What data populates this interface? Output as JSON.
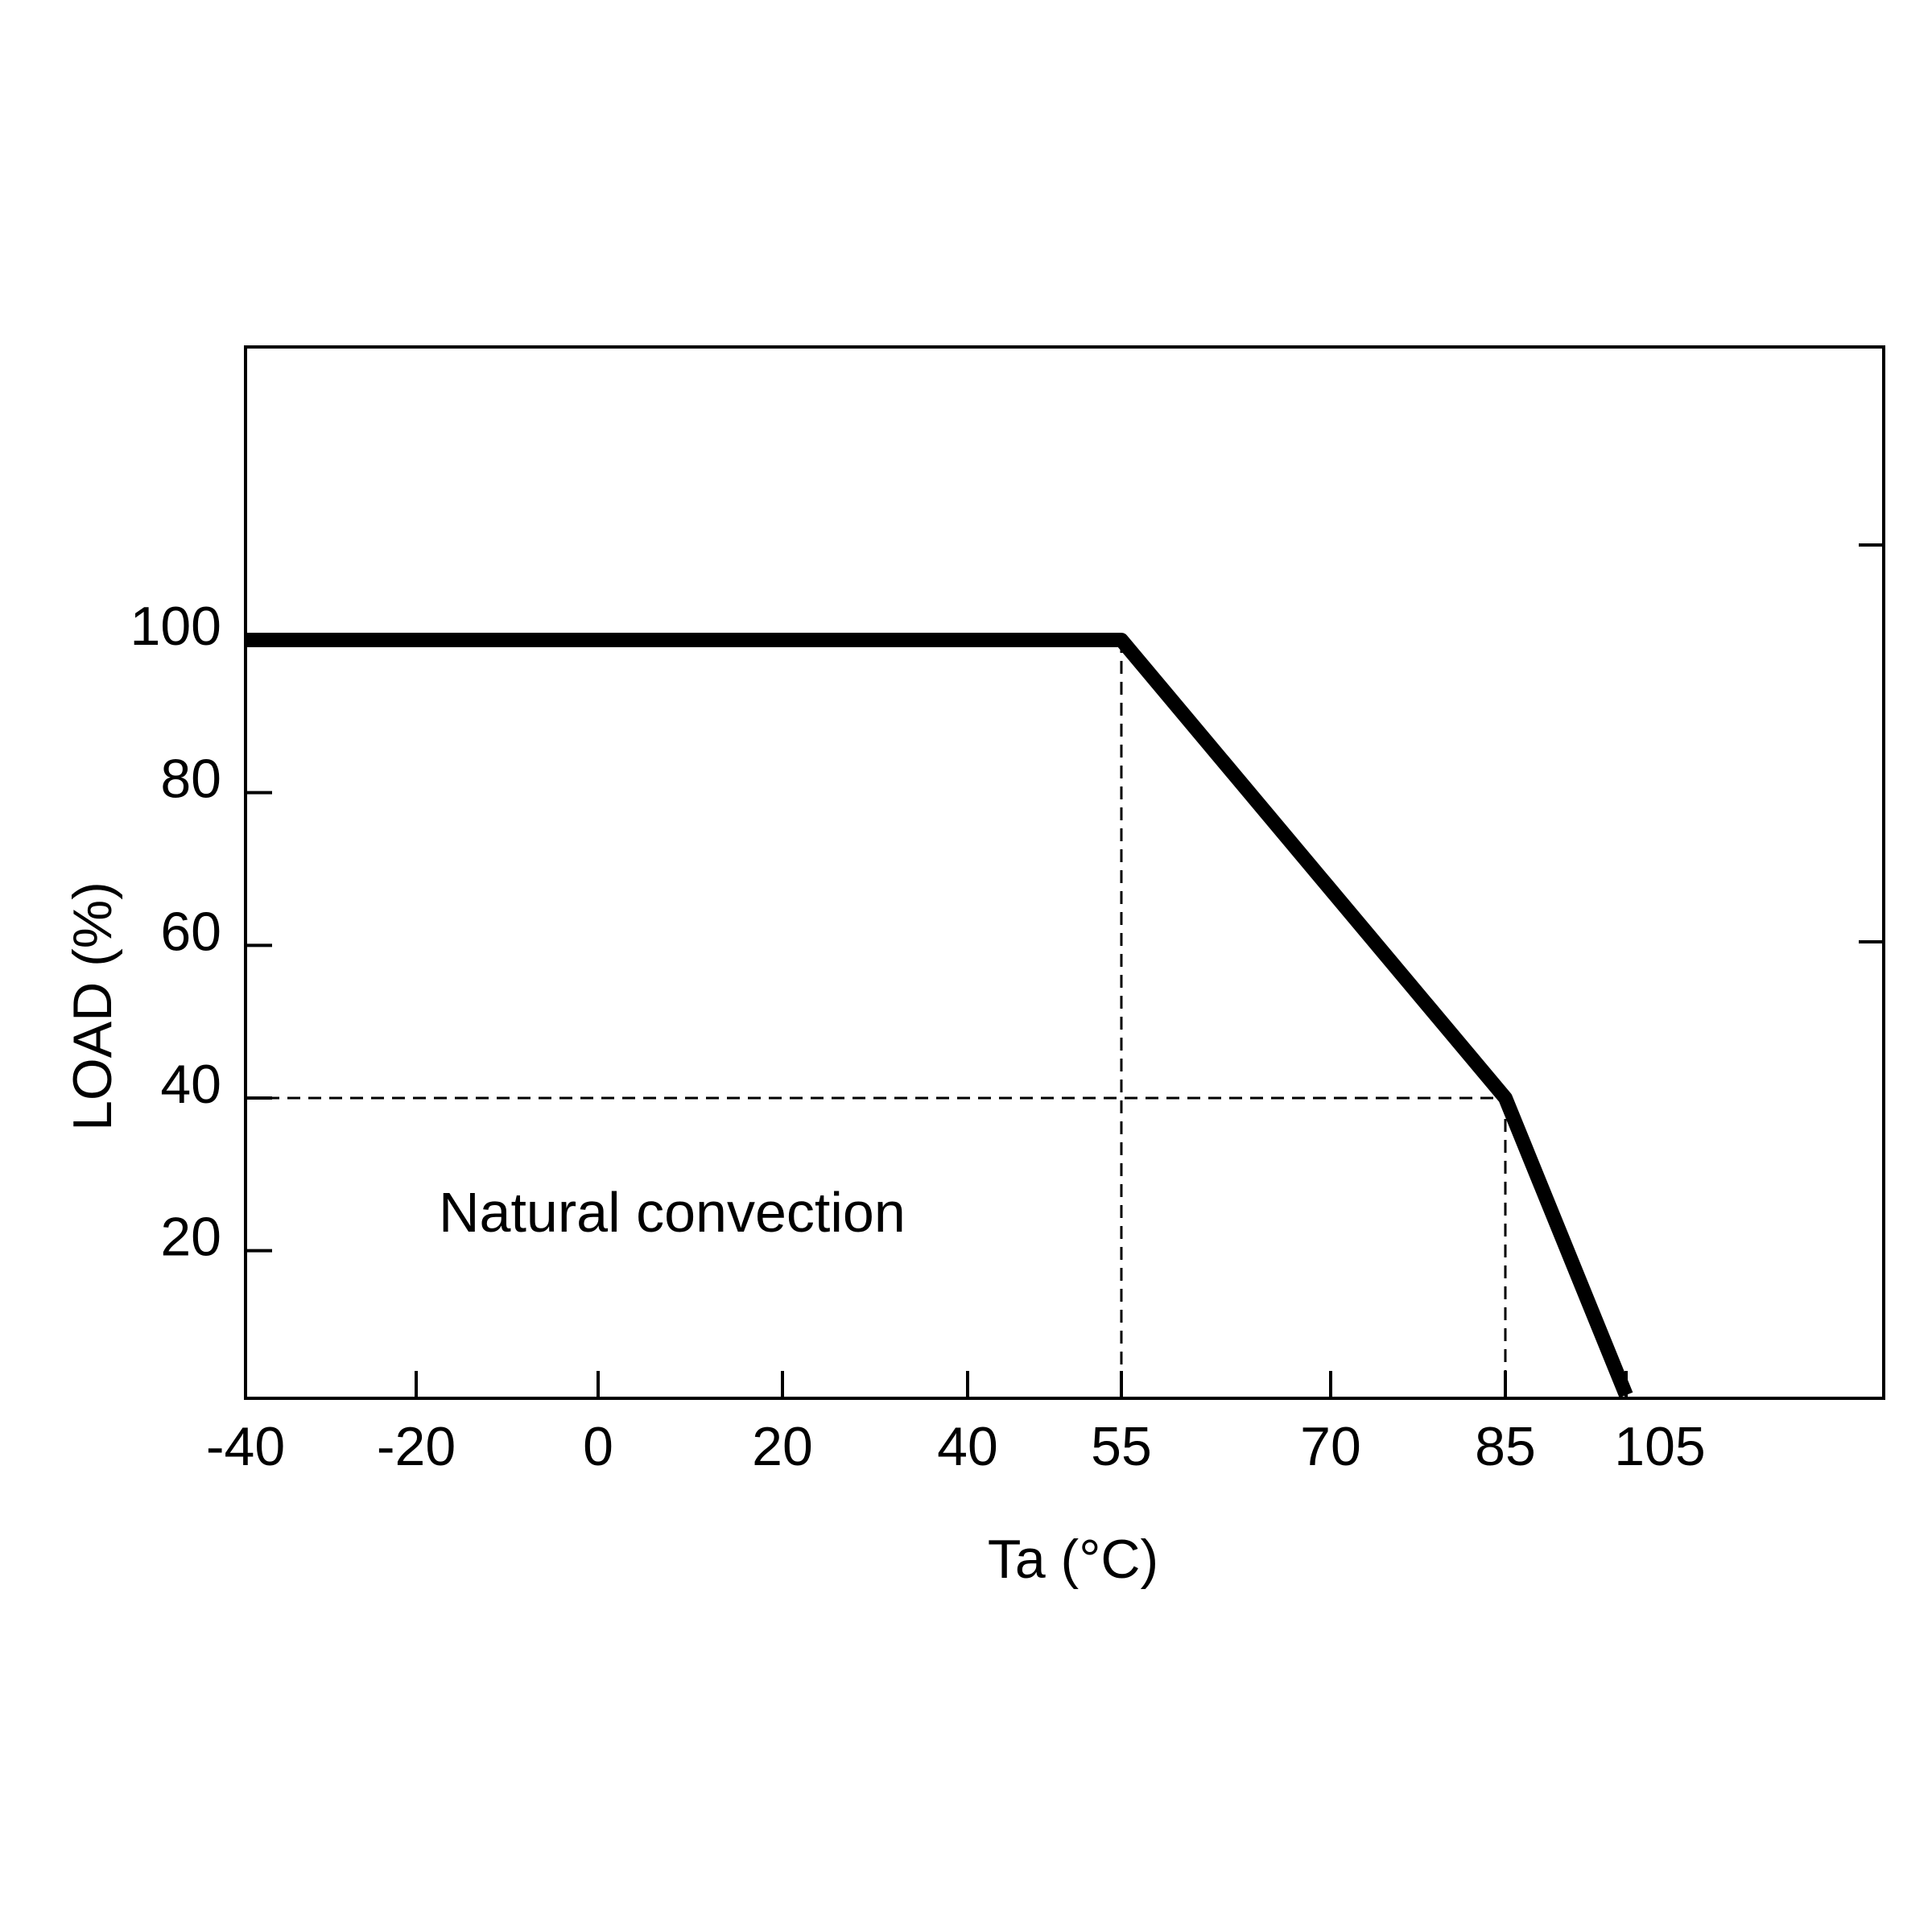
{
  "chart_data": {
    "type": "line",
    "title": "",
    "xlabel": "Ta (°C)",
    "ylabel": "LOAD (%)",
    "x_ticks": [
      "-40",
      "-20",
      "0",
      "20",
      "40",
      "55",
      "70",
      "85",
      "105"
    ],
    "y_ticks": [
      "20",
      "40",
      "60",
      "80",
      "100"
    ],
    "series": [
      {
        "x": [
          -40,
          55,
          85,
          105
        ],
        "y": [
          100,
          100,
          40,
          0
        ]
      }
    ],
    "reference_lines": [
      {
        "style": "dashed",
        "points": [
          [
            55,
            100
          ],
          [
            55,
            0
          ]
        ]
      },
      {
        "style": "dashed",
        "points": [
          [
            85,
            40
          ],
          [
            85,
            0
          ]
        ]
      },
      {
        "style": "dashed",
        "points": [
          [
            -40,
            40
          ],
          [
            85,
            40
          ]
        ]
      }
    ],
    "annotations": [
      {
        "text": "Natural convection",
        "x": 10,
        "y": 15
      }
    ],
    "grid": false,
    "legend": "none"
  },
  "colors": {
    "line": "#000000",
    "frame": "#000000",
    "background": "#ffffff"
  }
}
